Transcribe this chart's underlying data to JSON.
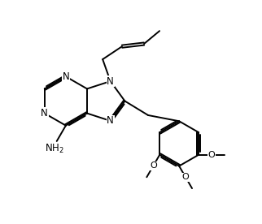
{
  "bg_color": "#ffffff",
  "line_color": "#000000",
  "line_width": 1.4,
  "font_size": 8.5,
  "fig_width": 3.22,
  "fig_height": 2.76,
  "dpi": 100,
  "xlim": [
    0,
    10
  ],
  "ylim": [
    0,
    8.6
  ]
}
